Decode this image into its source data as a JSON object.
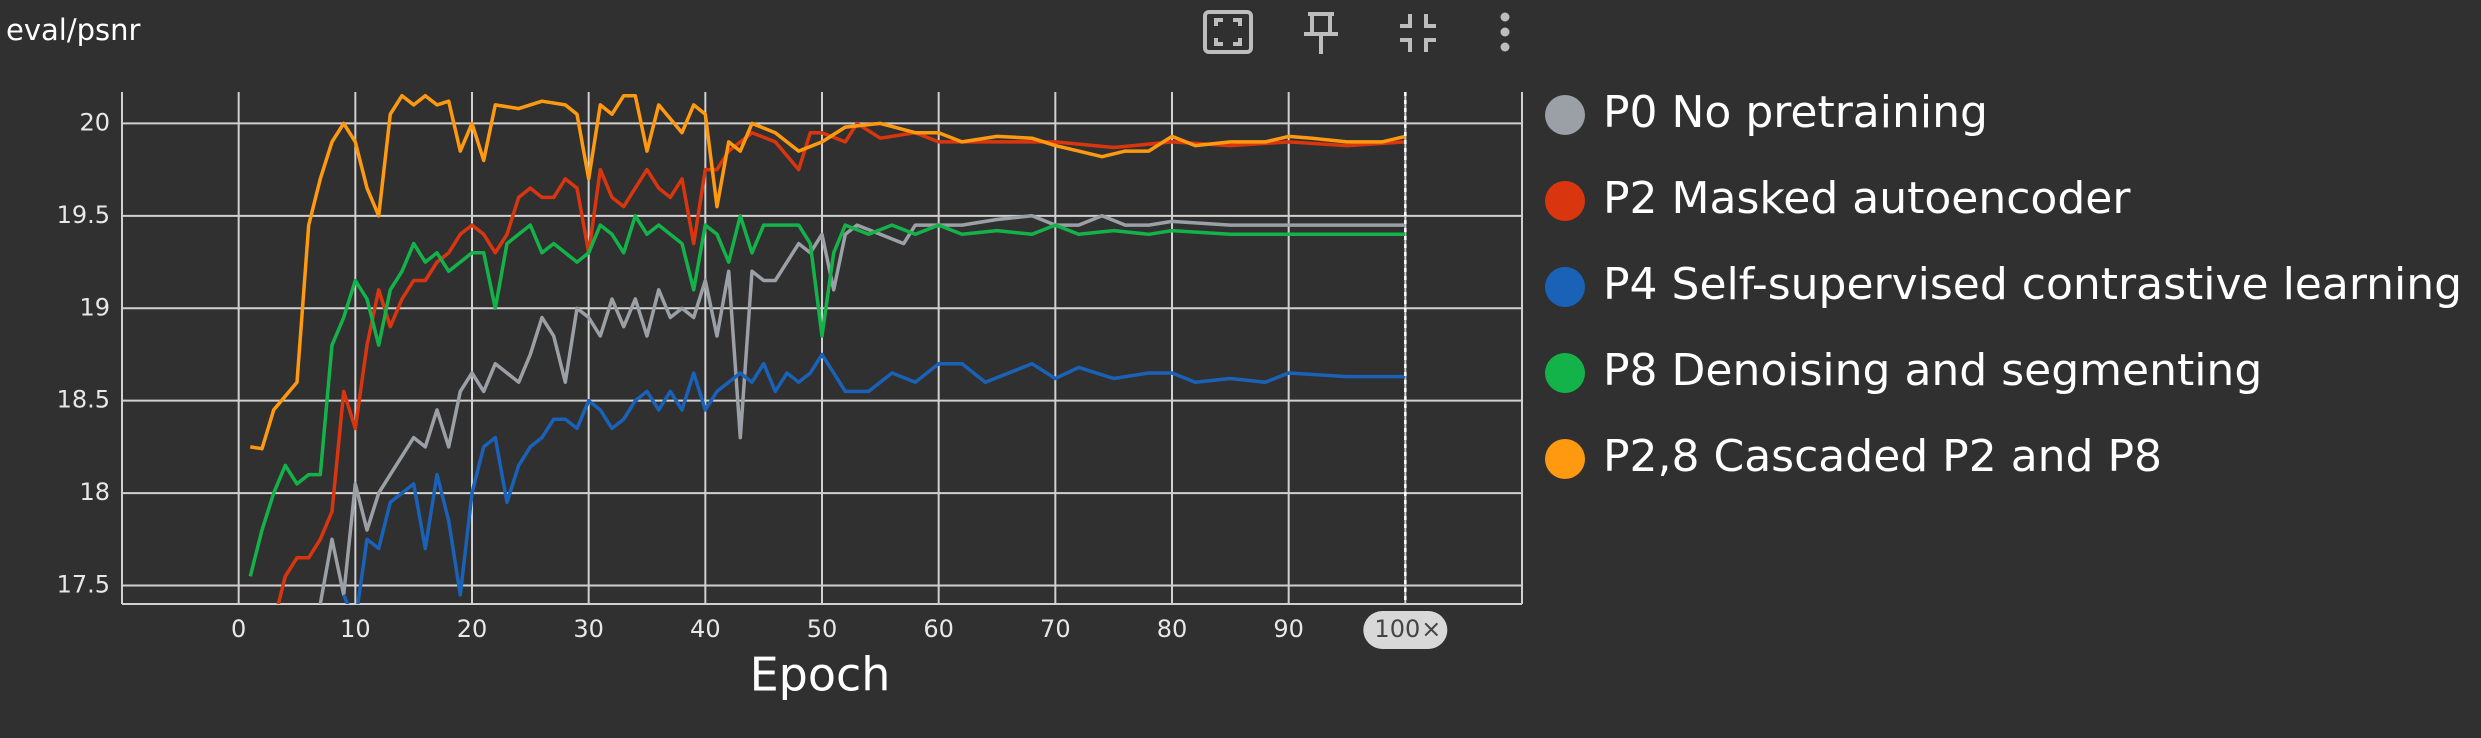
{
  "chart_data": {
    "type": "line",
    "title": "eval/psnr",
    "x_label": "Epoch",
    "xlim": [
      -10,
      110
    ],
    "ylim": [
      17.4,
      20.17
    ],
    "xticks": [
      0,
      10,
      20,
      30,
      40,
      50,
      60,
      70,
      80,
      90,
      100
    ],
    "yticks": [
      {
        "value": 17.5,
        "label": "17.5"
      },
      {
        "value": 18,
        "label": "18"
      },
      {
        "value": 18.5,
        "label": "18.5"
      },
      {
        "value": 19,
        "label": "19"
      },
      {
        "value": 19.5,
        "label": "19.5"
      },
      {
        "value": 20,
        "label": "20"
      }
    ],
    "grid": true,
    "legend": "right",
    "cursor": {
      "value": 100,
      "close": "×"
    },
    "series": [
      {
        "name": "P0 No pretraining",
        "color": "#9aa0a6",
        "x": [
          7,
          8,
          9,
          10,
          11,
          12,
          13,
          14,
          15,
          16,
          17,
          18,
          19,
          20,
          21,
          22,
          23,
          24,
          25,
          26,
          27,
          28,
          29,
          30,
          31,
          32,
          33,
          34,
          35,
          36,
          37,
          38,
          39,
          40,
          41,
          42,
          43,
          44,
          45,
          46,
          47,
          48,
          49,
          50,
          51,
          52,
          53,
          55,
          57,
          58,
          60,
          62,
          65,
          68,
          70,
          72,
          74,
          76,
          78,
          80,
          85,
          90,
          95,
          100
        ],
        "values": [
          17.4,
          17.75,
          17.45,
          18.05,
          17.8,
          18.0,
          18.1,
          18.2,
          18.3,
          18.25,
          18.45,
          18.25,
          18.55,
          18.65,
          18.55,
          18.7,
          18.65,
          18.6,
          18.75,
          18.95,
          18.85,
          18.6,
          19.0,
          18.95,
          18.85,
          19.05,
          18.9,
          19.05,
          18.85,
          19.1,
          18.95,
          19.0,
          18.95,
          19.15,
          18.85,
          19.2,
          18.3,
          19.2,
          19.15,
          19.15,
          19.25,
          19.35,
          19.3,
          19.4,
          19.1,
          19.4,
          19.45,
          19.4,
          19.35,
          19.45,
          19.45,
          19.45,
          19.48,
          19.5,
          19.45,
          19.45,
          19.5,
          19.45,
          19.45,
          19.47,
          19.45,
          19.45,
          19.45,
          19.45
        ]
      },
      {
        "name": "P2 Masked autoencoder",
        "color": "#d9360f",
        "x": [
          3,
          4,
          5,
          6,
          7,
          8,
          9,
          10,
          11,
          12,
          13,
          14,
          15,
          16,
          17,
          18,
          19,
          20,
          21,
          22,
          23,
          24,
          25,
          26,
          27,
          28,
          29,
          30,
          31,
          32,
          33,
          34,
          35,
          36,
          37,
          38,
          39,
          40,
          41,
          42,
          44,
          46,
          48,
          49,
          50,
          52,
          53,
          55,
          58,
          60,
          65,
          70,
          75,
          80,
          85,
          90,
          95,
          100
        ],
        "values": [
          17.3,
          17.55,
          17.65,
          17.65,
          17.75,
          17.9,
          18.55,
          18.35,
          18.8,
          19.1,
          18.9,
          19.05,
          19.15,
          19.15,
          19.25,
          19.3,
          19.4,
          19.45,
          19.4,
          19.3,
          19.4,
          19.6,
          19.65,
          19.6,
          19.6,
          19.7,
          19.65,
          19.3,
          19.75,
          19.6,
          19.55,
          19.65,
          19.75,
          19.65,
          19.6,
          19.7,
          19.35,
          19.75,
          19.75,
          19.85,
          19.95,
          19.9,
          19.75,
          19.95,
          19.95,
          19.9,
          20.0,
          19.92,
          19.95,
          19.9,
          19.9,
          19.9,
          19.87,
          19.9,
          19.88,
          19.9,
          19.88,
          19.9
        ]
      },
      {
        "name": "P4 Self-supervised contrastive learning",
        "color": "#1a62b8",
        "x": [
          9,
          10,
          11,
          12,
          13,
          14,
          15,
          16,
          17,
          18,
          19,
          20,
          21,
          22,
          23,
          24,
          25,
          26,
          27,
          28,
          29,
          30,
          31,
          32,
          33,
          34,
          35,
          36,
          37,
          38,
          39,
          40,
          41,
          42,
          43,
          44,
          45,
          46,
          47,
          48,
          49,
          50,
          51,
          52,
          54,
          56,
          58,
          60,
          62,
          64,
          66,
          68,
          70,
          72,
          75,
          78,
          80,
          82,
          85,
          88,
          90,
          95,
          100
        ],
        "values": [
          17.45,
          17.3,
          17.75,
          17.7,
          17.95,
          18.0,
          18.05,
          17.7,
          18.1,
          17.85,
          17.45,
          18.0,
          18.25,
          18.3,
          17.95,
          18.15,
          18.25,
          18.3,
          18.4,
          18.4,
          18.35,
          18.5,
          18.45,
          18.35,
          18.4,
          18.5,
          18.55,
          18.45,
          18.55,
          18.45,
          18.65,
          18.45,
          18.55,
          18.6,
          18.65,
          18.6,
          18.7,
          18.55,
          18.65,
          18.6,
          18.65,
          18.75,
          18.65,
          18.55,
          18.55,
          18.65,
          18.6,
          18.7,
          18.7,
          18.6,
          18.65,
          18.7,
          18.62,
          18.68,
          18.62,
          18.65,
          18.65,
          18.6,
          18.62,
          18.6,
          18.65,
          18.63,
          18.63
        ]
      },
      {
        "name": "P8 Denoising and segmenting",
        "color": "#14b34a",
        "x": [
          1,
          2,
          3,
          4,
          5,
          6,
          7,
          8,
          9,
          10,
          11,
          12,
          13,
          14,
          15,
          16,
          17,
          18,
          19,
          20,
          21,
          22,
          23,
          24,
          25,
          26,
          27,
          28,
          29,
          30,
          31,
          32,
          33,
          34,
          35,
          36,
          37,
          38,
          39,
          40,
          41,
          42,
          43,
          44,
          45,
          46,
          48,
          49,
          50,
          51,
          52,
          54,
          56,
          58,
          60,
          62,
          65,
          68,
          70,
          72,
          75,
          78,
          80,
          85,
          90,
          95,
          100
        ],
        "values": [
          17.55,
          17.8,
          18.0,
          18.15,
          18.05,
          18.1,
          18.1,
          18.8,
          18.95,
          19.15,
          19.05,
          18.8,
          19.1,
          19.2,
          19.35,
          19.25,
          19.3,
          19.2,
          19.25,
          19.3,
          19.3,
          19.0,
          19.35,
          19.4,
          19.45,
          19.3,
          19.35,
          19.3,
          19.25,
          19.3,
          19.45,
          19.4,
          19.3,
          19.5,
          19.4,
          19.45,
          19.4,
          19.35,
          19.1,
          19.45,
          19.4,
          19.25,
          19.5,
          19.3,
          19.45,
          19.45,
          19.45,
          19.35,
          18.85,
          19.3,
          19.45,
          19.4,
          19.45,
          19.4,
          19.45,
          19.4,
          19.42,
          19.4,
          19.45,
          19.4,
          19.42,
          19.4,
          19.42,
          19.4,
          19.4,
          19.4,
          19.4
        ]
      },
      {
        "name": "P2,8 Cascaded P2 and P8",
        "color": "#ff9a10",
        "x": [
          1,
          2,
          3,
          5,
          6,
          7,
          8,
          9,
          10,
          11,
          12,
          13,
          14,
          15,
          16,
          17,
          18,
          19,
          20,
          21,
          22,
          24,
          26,
          28,
          29,
          30,
          31,
          32,
          33,
          34,
          35,
          36,
          38,
          39,
          40,
          41,
          42,
          43,
          44,
          46,
          48,
          50,
          52,
          55,
          58,
          60,
          62,
          65,
          68,
          70,
          72,
          74,
          76,
          78,
          80,
          82,
          85,
          88,
          90,
          92,
          95,
          98,
          100
        ],
        "values": [
          18.25,
          18.24,
          18.45,
          18.6,
          19.45,
          19.7,
          19.9,
          20.0,
          19.9,
          19.65,
          19.5,
          20.05,
          20.15,
          20.1,
          20.15,
          20.1,
          20.12,
          19.85,
          20.0,
          19.8,
          20.1,
          20.08,
          20.12,
          20.1,
          20.05,
          19.7,
          20.1,
          20.05,
          20.15,
          20.15,
          19.85,
          20.1,
          19.95,
          20.1,
          20.05,
          19.55,
          19.9,
          19.85,
          20.0,
          19.95,
          19.85,
          19.9,
          19.98,
          20.0,
          19.95,
          19.95,
          19.9,
          19.93,
          19.92,
          19.88,
          19.85,
          19.82,
          19.85,
          19.85,
          19.93,
          19.88,
          19.9,
          19.9,
          19.93,
          19.92,
          19.9,
          19.9,
          19.93
        ]
      }
    ]
  }
}
